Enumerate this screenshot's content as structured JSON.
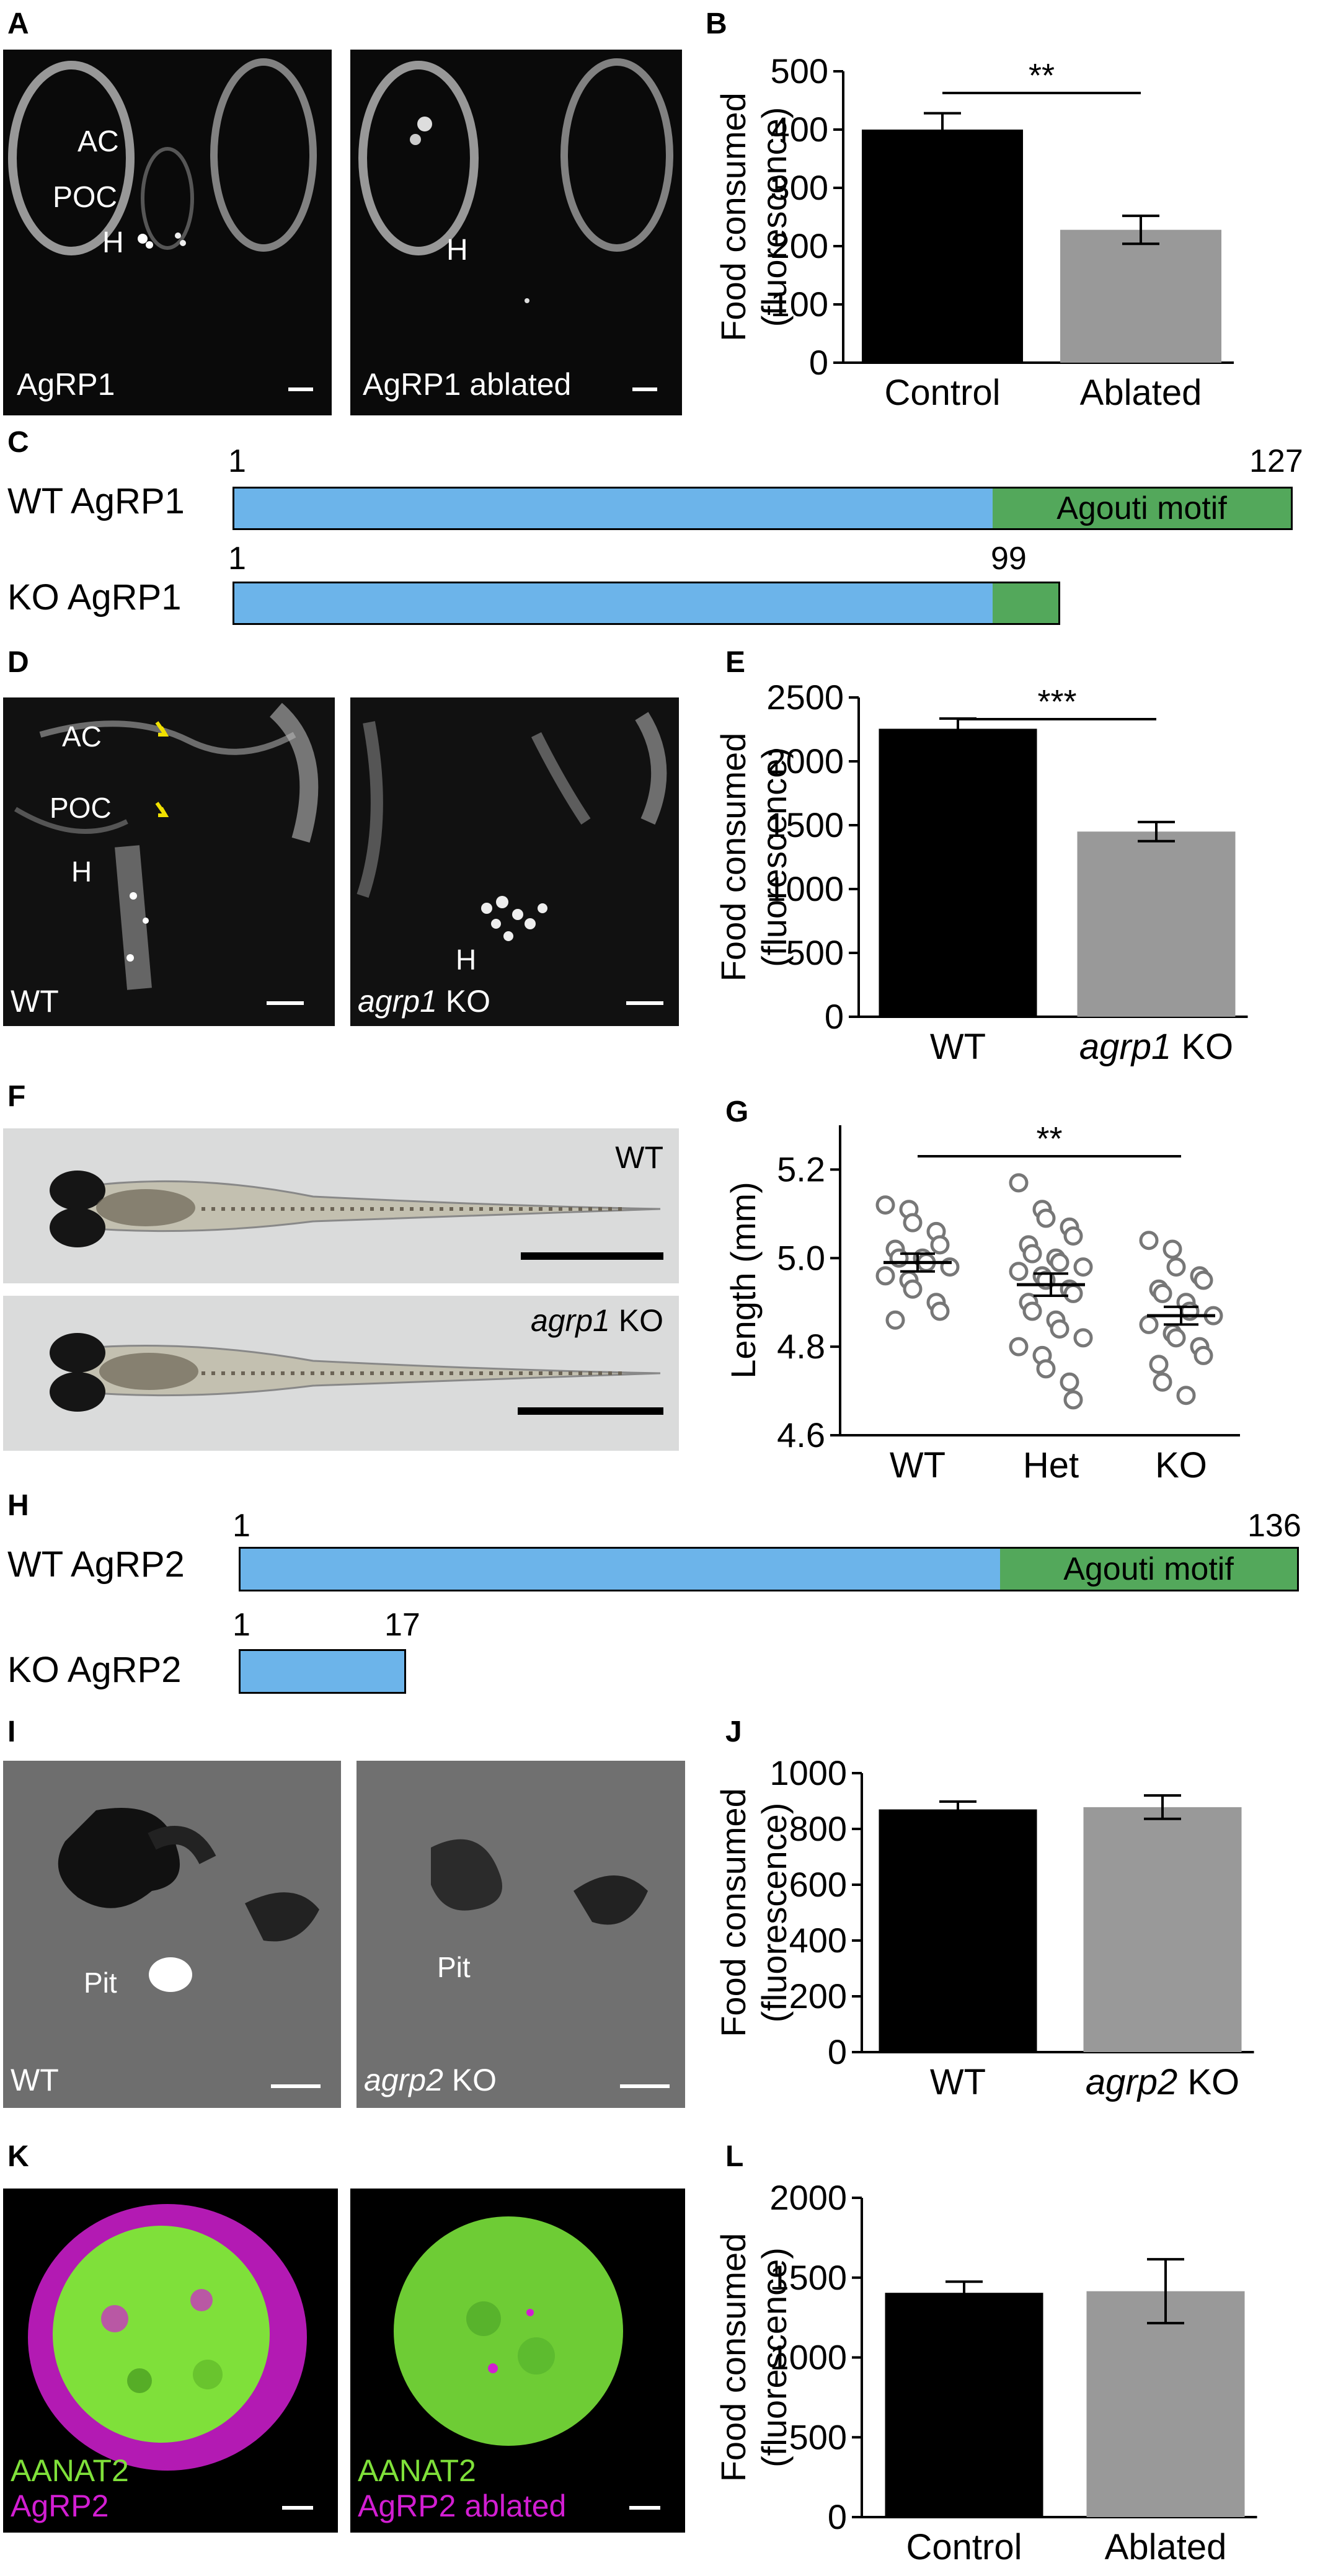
{
  "panels": {
    "A": {
      "letter": "A",
      "left_labels": {
        "ac": "AC",
        "poc": "POC",
        "h": "H",
        "caption": "AgRP1"
      },
      "right_labels": {
        "h": "H",
        "caption": "AgRP1 ablated"
      }
    },
    "B": {
      "letter": "B"
    },
    "C": {
      "letter": "C",
      "wt": {
        "name": "WT AgRP1",
        "start": "1",
        "end": "127",
        "motif": "Agouti motif"
      },
      "ko": {
        "name": "KO AgRP1",
        "start": "1",
        "end": "99"
      }
    },
    "D": {
      "letter": "D",
      "left_labels": {
        "ac": "AC",
        "poc": "POC",
        "h": "H",
        "caption": "WT"
      },
      "right_labels": {
        "h": "H",
        "caption_italic": "agrp1",
        "caption_rest": " KO"
      }
    },
    "E": {
      "letter": "E"
    },
    "F": {
      "letter": "F",
      "top_caption": "WT",
      "bottom_caption_italic": "agrp1",
      "bottom_caption_rest": " KO"
    },
    "G": {
      "letter": "G"
    },
    "H": {
      "letter": "H",
      "wt": {
        "name": "WT AgRP2",
        "start": "1",
        "end": "136",
        "motif": "Agouti motif"
      },
      "ko": {
        "name": "KO AgRP2",
        "start": "1",
        "end": "17"
      }
    },
    "I": {
      "letter": "I",
      "left_labels": {
        "pit": "Pit",
        "caption": "WT"
      },
      "right_labels": {
        "pit": "Pit",
        "caption_italic": "agrp2",
        "caption_rest": " KO"
      }
    },
    "J": {
      "letter": "J"
    },
    "K": {
      "letter": "K",
      "left_labels": {
        "line1": "AANAT2",
        "line2": "AgRP2"
      },
      "right_labels": {
        "line1": "AANAT2",
        "line2": "AgRP2 ablated"
      }
    },
    "L": {
      "letter": "L"
    }
  },
  "colors": {
    "control_bar": "#000000",
    "treated_bar": "#999999",
    "domain_blue": "#6cb4ea",
    "domain_green": "#53a85b",
    "aanat2_green": "#7fe03a",
    "agrp2_magenta": "#d21ed2",
    "arrow_yellow": "#f0e000"
  },
  "chart_data": [
    {
      "panel": "B",
      "type": "bar",
      "categories": [
        "Control",
        "Ablated"
      ],
      "values": [
        400,
        228
      ],
      "errors": [
        28,
        24
      ],
      "ylabel": [
        "Food consumed",
        "(fluorescence)"
      ],
      "ylim": [
        0,
        500
      ],
      "yticks": [
        "0",
        "100",
        "200",
        "300",
        "400",
        "500"
      ],
      "significance": "**"
    },
    {
      "panel": "E",
      "type": "bar",
      "categories": [
        "WT",
        "agrp1 KO"
      ],
      "values": [
        2255,
        1450
      ],
      "errors": [
        80,
        75
      ],
      "ylabel": [
        "Food consumed",
        "(fluorescence)"
      ],
      "ylim": [
        0,
        2500
      ],
      "yticks": [
        "0",
        "500",
        "1000",
        "1500",
        "2000",
        "2500"
      ],
      "significance": "***"
    },
    {
      "panel": "G",
      "type": "scatter",
      "categories": [
        "WT",
        "Het",
        "KO"
      ],
      "means": [
        4.99,
        4.94,
        4.87
      ],
      "sems": [
        0.02,
        0.025,
        0.02
      ],
      "points": [
        [
          5.12,
          5.11,
          5.08,
          5.06,
          5.03,
          5.02,
          5.0,
          5.0,
          4.99,
          4.98,
          4.96,
          4.95,
          4.93,
          4.9,
          4.88,
          4.86
        ],
        [
          5.17,
          5.11,
          5.09,
          5.07,
          5.05,
          5.03,
          5.01,
          5.0,
          4.99,
          4.98,
          4.97,
          4.96,
          4.95,
          4.93,
          4.92,
          4.9,
          4.88,
          4.86,
          4.84,
          4.82,
          4.8,
          4.78,
          4.75,
          4.72,
          4.68
        ],
        [
          5.04,
          5.02,
          4.98,
          4.96,
          4.95,
          4.93,
          4.92,
          4.9,
          4.88,
          4.87,
          4.85,
          4.83,
          4.82,
          4.8,
          4.78,
          4.76,
          4.72,
          4.69
        ]
      ],
      "ylabel": "Length (mm)",
      "ylim": [
        4.6,
        5.3
      ],
      "yticks": [
        "4.6",
        "4.8",
        "5.0",
        "5.2"
      ],
      "significance": "**"
    },
    {
      "panel": "J",
      "type": "bar",
      "categories": [
        "WT",
        "agrp2 KO"
      ],
      "values": [
        870,
        878
      ],
      "errors": [
        28,
        42
      ],
      "ylabel": [
        "Food consumed",
        "(fluorescence)"
      ],
      "ylim": [
        0,
        1000
      ],
      "yticks": [
        "0",
        "200",
        "400",
        "600",
        "800",
        "1000"
      ],
      "significance": ""
    },
    {
      "panel": "L",
      "type": "bar",
      "categories": [
        "Control",
        "Ablated"
      ],
      "values": [
        1405,
        1415
      ],
      "errors": [
        70,
        200
      ],
      "ylabel": [
        "Food consumed",
        "(fluorescence)"
      ],
      "ylim": [
        0,
        2000
      ],
      "yticks": [
        "0",
        "500",
        "1000",
        "1500",
        "2000"
      ],
      "significance": ""
    }
  ]
}
